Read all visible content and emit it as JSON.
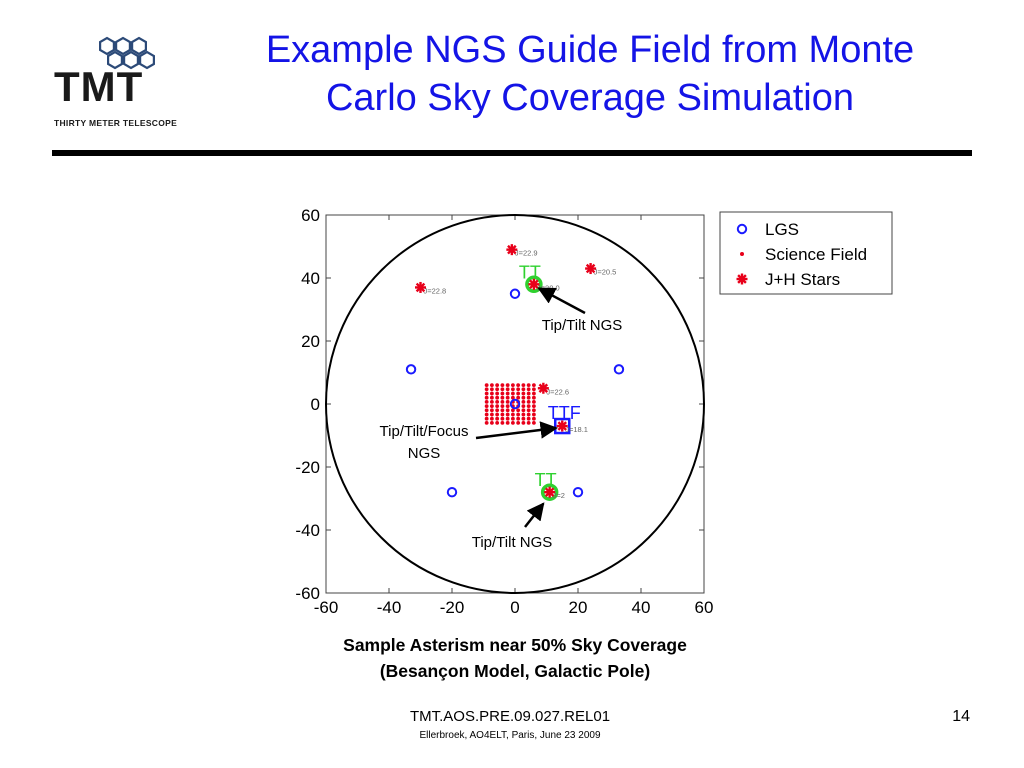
{
  "slide": {
    "title_line1": "Example NGS Guide Field from Monte",
    "title_line2": "Carlo Sky Coverage Simulation",
    "logo_text": "TMT",
    "logo_subtext": "THIRTY METER TELESCOPE",
    "caption_line1": "Sample Asterism near 50% Sky Coverage",
    "caption_line2": "(Besançon Model, Galactic Pole)",
    "footer_id": "TMT.AOS.PRE.09.027.REL01",
    "footer_sub": "Ellerbroek, AO4ELT, Paris, June 23 2009",
    "page_number": "14",
    "colors": {
      "title": "#1414e6",
      "lgs": "#1a1aff",
      "stars": "#e8001a",
      "tt_ring": "#2fd12f",
      "ttf": "#1a1aff"
    }
  },
  "chart_data": {
    "type": "scatter",
    "xlim": [
      -60,
      60
    ],
    "ylim": [
      -60,
      60
    ],
    "x_ticks": [
      "-60",
      "-40",
      "-20",
      "0",
      "20",
      "40",
      "60"
    ],
    "y_ticks": [
      "60",
      "40",
      "20",
      "0",
      "-20",
      "-40",
      "-60"
    ],
    "field_circle_radius": 60,
    "legend": {
      "position": "outside-top-right",
      "entries": [
        "LGS",
        "Science Field",
        "J+H Stars"
      ]
    },
    "lgs": [
      {
        "x": 0,
        "y": 35
      },
      {
        "x": -33,
        "y": 11
      },
      {
        "x": 33,
        "y": 11
      },
      {
        "x": -20,
        "y": -28
      },
      {
        "x": 20,
        "y": -28
      },
      {
        "x": 0,
        "y": 0
      }
    ],
    "science_field": {
      "x_min": -9,
      "x_max": 6,
      "y_min": -6,
      "y_max": 6,
      "grid": 10
    },
    "stars": [
      {
        "x": -30,
        "y": 37,
        "label": "J=22.8"
      },
      {
        "x": -1,
        "y": 49,
        "label": "J=22.9"
      },
      {
        "x": 24,
        "y": 43,
        "label": "J=20.5"
      },
      {
        "x": 6,
        "y": 38,
        "label": "J=20.0",
        "tag": "TT"
      },
      {
        "x": 9,
        "y": 5,
        "label": "J=22.6"
      },
      {
        "x": 15,
        "y": -7,
        "label": "J=18.1",
        "tag": "TTF"
      },
      {
        "x": 11,
        "y": -28,
        "label": "J=2",
        "tag": "TT"
      }
    ],
    "annotations": [
      {
        "text": "Tip/Tilt NGS",
        "arrow_to": {
          "x": 6,
          "y": 38
        }
      },
      {
        "text": "Tip/Tilt/Focus",
        "text2": "NGS",
        "arrow_to": {
          "x": 15,
          "y": -7
        }
      },
      {
        "text": "Tip/Tilt NGS",
        "arrow_to": {
          "x": 9,
          "y": -31
        }
      }
    ]
  }
}
